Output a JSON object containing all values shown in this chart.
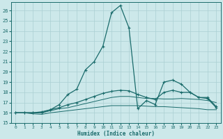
{
  "xlabel": "Humidex (Indice chaleur)",
  "bg_color": "#cce8ea",
  "grid_color": "#aacfd2",
  "line_color": "#1a6b6b",
  "xlim": [
    -0.5,
    23.5
  ],
  "ylim": [
    15.0,
    26.8
  ],
  "xticks": [
    0,
    1,
    2,
    3,
    4,
    5,
    6,
    7,
    8,
    9,
    10,
    11,
    12,
    13,
    14,
    15,
    16,
    17,
    18,
    19,
    20,
    21,
    22,
    23
  ],
  "yticks": [
    15,
    16,
    17,
    18,
    19,
    20,
    21,
    22,
    23,
    24,
    25,
    26
  ],
  "series": [
    {
      "x": [
        0,
        1,
        2,
        3,
        4,
        5,
        6,
        7,
        8,
        9,
        10,
        11,
        12,
        13,
        14,
        15,
        16,
        17,
        18,
        19,
        20,
        21,
        22,
        23
      ],
      "y": [
        16.0,
        16.0,
        15.9,
        15.85,
        16.0,
        16.1,
        16.2,
        16.3,
        16.4,
        16.5,
        16.6,
        16.7,
        16.7,
        16.7,
        16.7,
        16.65,
        16.6,
        16.6,
        16.55,
        16.5,
        16.45,
        16.4,
        16.3,
        16.3
      ],
      "marker": false
    },
    {
      "x": [
        0,
        1,
        2,
        3,
        4,
        5,
        6,
        7,
        8,
        9,
        10,
        11,
        12,
        13,
        14,
        15,
        16,
        17,
        18,
        19,
        20,
        21,
        22,
        23
      ],
      "y": [
        16.0,
        16.0,
        16.0,
        16.0,
        16.2,
        16.4,
        16.5,
        16.7,
        16.9,
        17.1,
        17.3,
        17.5,
        17.6,
        17.6,
        17.5,
        17.4,
        17.4,
        17.35,
        17.35,
        17.4,
        17.35,
        17.3,
        17.2,
        17.0
      ],
      "marker": false
    },
    {
      "x": [
        0,
        1,
        2,
        3,
        4,
        5,
        6,
        7,
        8,
        9,
        10,
        11,
        12,
        13,
        14,
        15,
        16,
        17,
        18,
        19,
        20,
        21,
        22,
        23
      ],
      "y": [
        16.0,
        16.0,
        16.0,
        16.0,
        16.3,
        16.5,
        16.8,
        17.0,
        17.3,
        17.6,
        17.9,
        18.1,
        18.2,
        18.15,
        17.8,
        17.5,
        17.3,
        18.0,
        18.2,
        18.0,
        18.0,
        17.5,
        17.5,
        16.6
      ],
      "marker": true
    },
    {
      "x": [
        0,
        1,
        2,
        3,
        4,
        5,
        6,
        7,
        8,
        9,
        10,
        11,
        12,
        13,
        14,
        15,
        16,
        17,
        18,
        19,
        20,
        21,
        22,
        23
      ],
      "y": [
        16.0,
        16.0,
        16.0,
        16.1,
        16.3,
        16.8,
        17.8,
        18.3,
        20.2,
        21.0,
        22.5,
        25.8,
        26.5,
        24.3,
        16.4,
        17.2,
        16.8,
        19.0,
        19.2,
        18.8,
        18.0,
        17.5,
        17.4,
        16.5
      ],
      "marker": true
    }
  ]
}
